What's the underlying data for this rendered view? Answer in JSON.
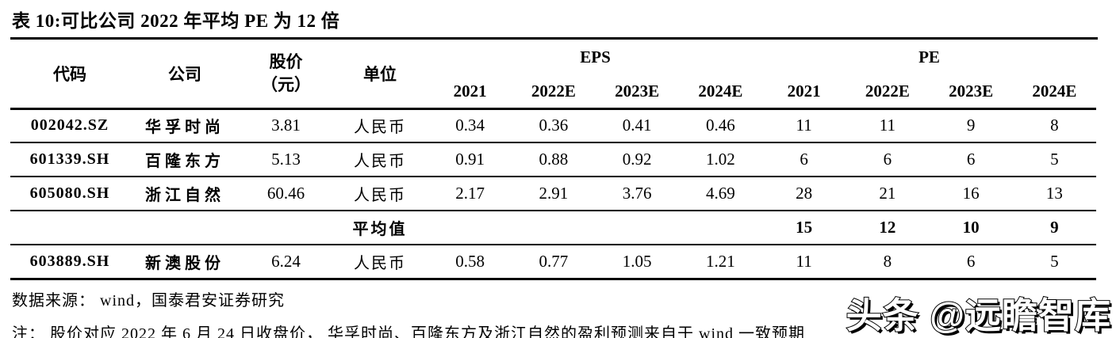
{
  "title": "表 10:可比公司 2022 年平均 PE 为 12 倍",
  "table": {
    "headers": {
      "code": "代码",
      "company": "公司",
      "price_line1": "股价",
      "price_line2": "（元）",
      "unit": "单位",
      "eps_group": "EPS",
      "pe_group": "PE",
      "eps_years": [
        "2021",
        "2022E",
        "2023E",
        "2024E"
      ],
      "pe_years": [
        "2021",
        "2022E",
        "2023E",
        "2024E"
      ]
    },
    "rows": [
      {
        "code": "002042.SZ",
        "company": "华孚时尚",
        "price": "3.81",
        "unit": "人民币",
        "eps": [
          "0.34",
          "0.36",
          "0.41",
          "0.46"
        ],
        "pe": [
          "11",
          "11",
          "9",
          "8"
        ]
      },
      {
        "code": "601339.SH",
        "company": "百隆东方",
        "price": "5.13",
        "unit": "人民币",
        "eps": [
          "0.91",
          "0.88",
          "0.92",
          "1.02"
        ],
        "pe": [
          "6",
          "6",
          "6",
          "5"
        ]
      },
      {
        "code": "605080.SH",
        "company": "浙江自然",
        "price": "60.46",
        "unit": "人民币",
        "eps": [
          "2.17",
          "2.91",
          "3.76",
          "4.69"
        ],
        "pe": [
          "28",
          "21",
          "16",
          "13"
        ]
      }
    ],
    "average_row": {
      "label": "平均值",
      "pe": [
        "15",
        "12",
        "10",
        "9"
      ]
    },
    "extra_row": {
      "code": "603889.SH",
      "company": "新澳股份",
      "price": "6.24",
      "unit": "人民币",
      "eps": [
        "0.58",
        "0.77",
        "1.05",
        "1.21"
      ],
      "pe": [
        "11",
        "8",
        "6",
        "5"
      ]
    }
  },
  "footer": {
    "source": "数据来源： wind，国泰君安证券研究",
    "note": "注： 股价对应 2022 年 6 月 24 日收盘价， 华孚时尚、百隆东方及浙江自然的盈利预测来自于 wind 一致预期"
  },
  "watermark": "头条 @远瞻智库",
  "colors": {
    "text": "#000000",
    "background": "#ffffff",
    "rule": "#000000"
  }
}
